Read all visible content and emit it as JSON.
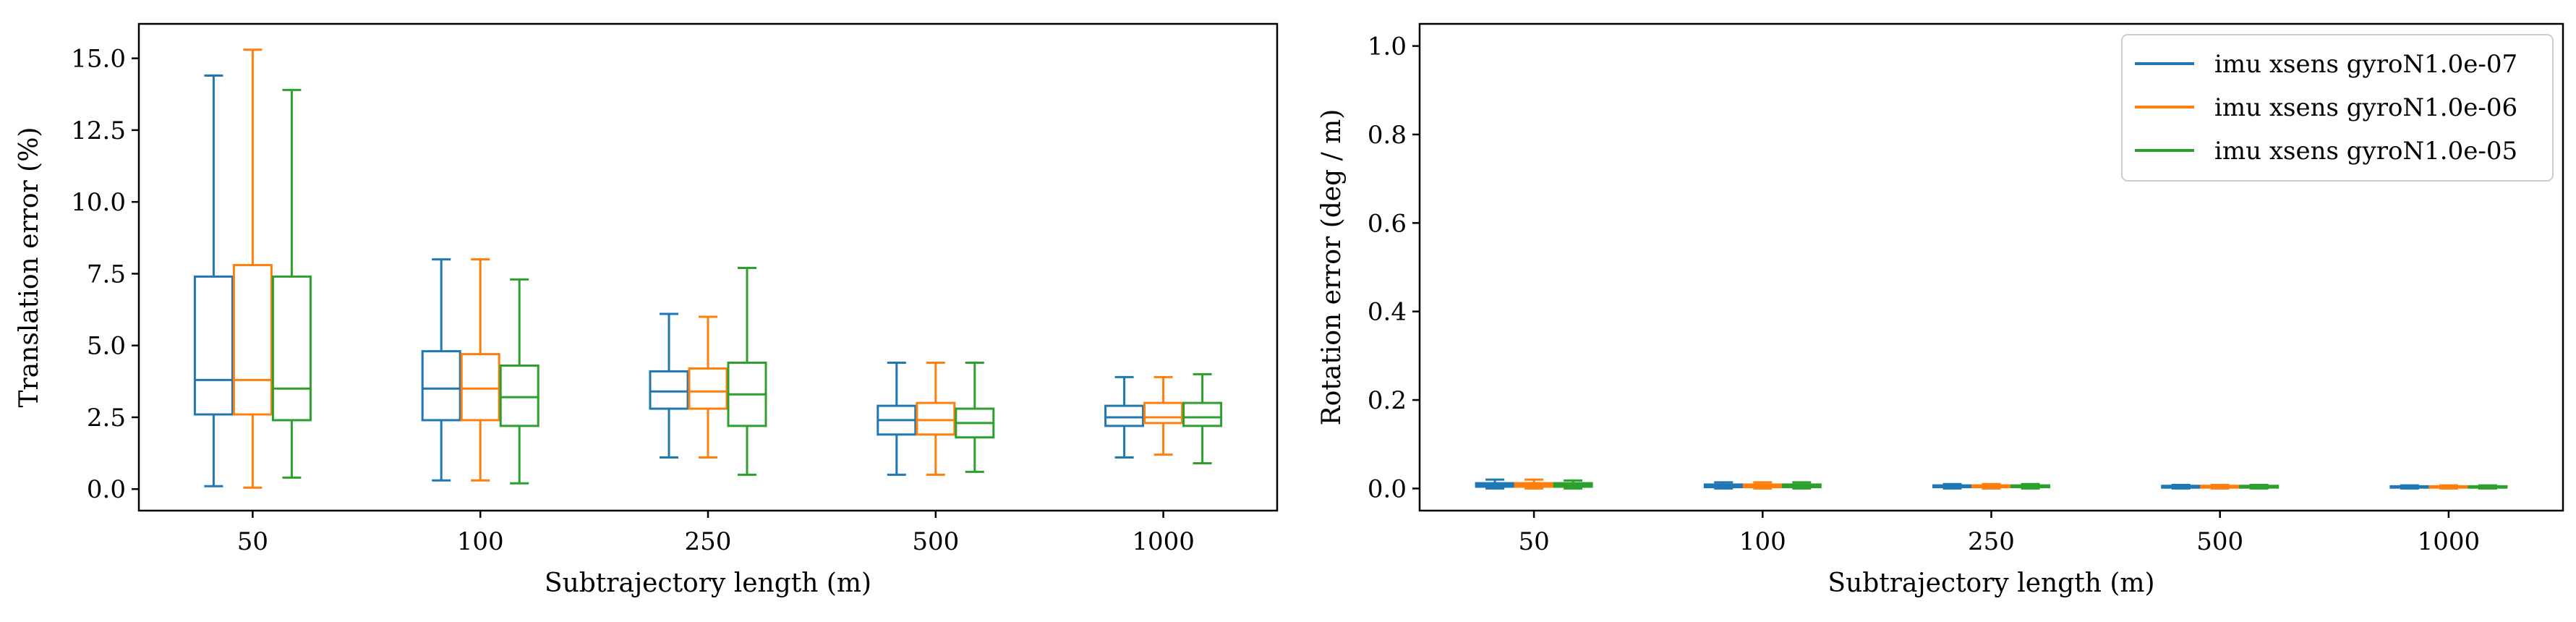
{
  "chart_data": [
    {
      "type": "box",
      "xlabel": "Subtrajectory length (m)",
      "ylabel": "Translation error (%)",
      "categories": [
        "50",
        "100",
        "250",
        "500",
        "1000"
      ],
      "yticks": [
        "0.0",
        "2.5",
        "5.0",
        "7.5",
        "10.0",
        "12.5",
        "15.0"
      ],
      "ylim": [
        -0.75,
        16.2
      ],
      "grid": false,
      "series": [
        {
          "color": "#1f77b4",
          "boxes": [
            {
              "min": 0.1,
              "q1": 2.6,
              "median": 3.8,
              "q3": 7.4,
              "max": 14.4
            },
            {
              "min": 0.3,
              "q1": 2.4,
              "median": 3.5,
              "q3": 4.8,
              "max": 8.0
            },
            {
              "min": 1.1,
              "q1": 2.8,
              "median": 3.4,
              "q3": 4.1,
              "max": 6.1
            },
            {
              "min": 0.5,
              "q1": 1.9,
              "median": 2.4,
              "q3": 2.9,
              "max": 4.4
            },
            {
              "min": 1.1,
              "q1": 2.2,
              "median": 2.5,
              "q3": 2.9,
              "max": 3.9
            }
          ]
        },
        {
          "color": "#ff7f0e",
          "boxes": [
            {
              "min": 0.05,
              "q1": 2.6,
              "median": 3.8,
              "q3": 7.8,
              "max": 15.3
            },
            {
              "min": 0.3,
              "q1": 2.4,
              "median": 3.5,
              "q3": 4.7,
              "max": 8.0
            },
            {
              "min": 1.1,
              "q1": 2.8,
              "median": 3.4,
              "q3": 4.2,
              "max": 6.0
            },
            {
              "min": 0.5,
              "q1": 1.9,
              "median": 2.4,
              "q3": 3.0,
              "max": 4.4
            },
            {
              "min": 1.2,
              "q1": 2.3,
              "median": 2.5,
              "q3": 3.0,
              "max": 3.9
            }
          ]
        },
        {
          "color": "#2ca02c",
          "boxes": [
            {
              "min": 0.4,
              "q1": 2.4,
              "median": 3.5,
              "q3": 7.4,
              "max": 13.9
            },
            {
              "min": 0.2,
              "q1": 2.2,
              "median": 3.2,
              "q3": 4.3,
              "max": 7.3
            },
            {
              "min": 0.5,
              "q1": 2.2,
              "median": 3.3,
              "q3": 4.4,
              "max": 7.7
            },
            {
              "min": 0.6,
              "q1": 1.8,
              "median": 2.3,
              "q3": 2.8,
              "max": 4.4
            },
            {
              "min": 0.9,
              "q1": 2.2,
              "median": 2.5,
              "q3": 3.0,
              "max": 4.0
            }
          ]
        }
      ]
    },
    {
      "type": "box",
      "xlabel": "Subtrajectory length (m)",
      "ylabel": "Rotation error (deg / m)",
      "categories": [
        "50",
        "100",
        "250",
        "500",
        "1000"
      ],
      "yticks": [
        "0.0",
        "0.2",
        "0.4",
        "0.6",
        "0.8",
        "1.0"
      ],
      "ylim": [
        -0.05,
        1.05
      ],
      "grid": false,
      "legend_position": "top-right",
      "series": [
        {
          "name": "imu xsens gyroN1.0e-07",
          "color": "#1f77b4",
          "boxes": [
            {
              "min": 0.0,
              "q1": 0.004,
              "median": 0.008,
              "q3": 0.012,
              "max": 0.02
            },
            {
              "min": 0.0,
              "q1": 0.003,
              "median": 0.006,
              "q3": 0.009,
              "max": 0.014
            },
            {
              "min": 0.0,
              "q1": 0.003,
              "median": 0.005,
              "q3": 0.007,
              "max": 0.01
            },
            {
              "min": 0.0,
              "q1": 0.002,
              "median": 0.004,
              "q3": 0.006,
              "max": 0.008
            },
            {
              "min": 0.0,
              "q1": 0.002,
              "median": 0.003,
              "q3": 0.005,
              "max": 0.007
            }
          ]
        },
        {
          "name": "imu xsens gyroN1.0e-06",
          "color": "#ff7f0e",
          "boxes": [
            {
              "min": 0.0,
              "q1": 0.004,
              "median": 0.008,
              "q3": 0.012,
              "max": 0.02
            },
            {
              "min": 0.0,
              "q1": 0.003,
              "median": 0.006,
              "q3": 0.009,
              "max": 0.014
            },
            {
              "min": 0.0,
              "q1": 0.003,
              "median": 0.005,
              "q3": 0.007,
              "max": 0.01
            },
            {
              "min": 0.0,
              "q1": 0.002,
              "median": 0.004,
              "q3": 0.006,
              "max": 0.008
            },
            {
              "min": 0.0,
              "q1": 0.002,
              "median": 0.003,
              "q3": 0.005,
              "max": 0.007
            }
          ]
        },
        {
          "name": "imu xsens gyroN1.0e-05",
          "color": "#2ca02c",
          "boxes": [
            {
              "min": 0.0,
              "q1": 0.004,
              "median": 0.008,
              "q3": 0.012,
              "max": 0.018
            },
            {
              "min": 0.0,
              "q1": 0.003,
              "median": 0.006,
              "q3": 0.009,
              "max": 0.014
            },
            {
              "min": 0.0,
              "q1": 0.003,
              "median": 0.005,
              "q3": 0.007,
              "max": 0.01
            },
            {
              "min": 0.0,
              "q1": 0.002,
              "median": 0.004,
              "q3": 0.006,
              "max": 0.008
            },
            {
              "min": 0.0,
              "q1": 0.002,
              "median": 0.003,
              "q3": 0.005,
              "max": 0.007
            }
          ]
        }
      ]
    }
  ]
}
